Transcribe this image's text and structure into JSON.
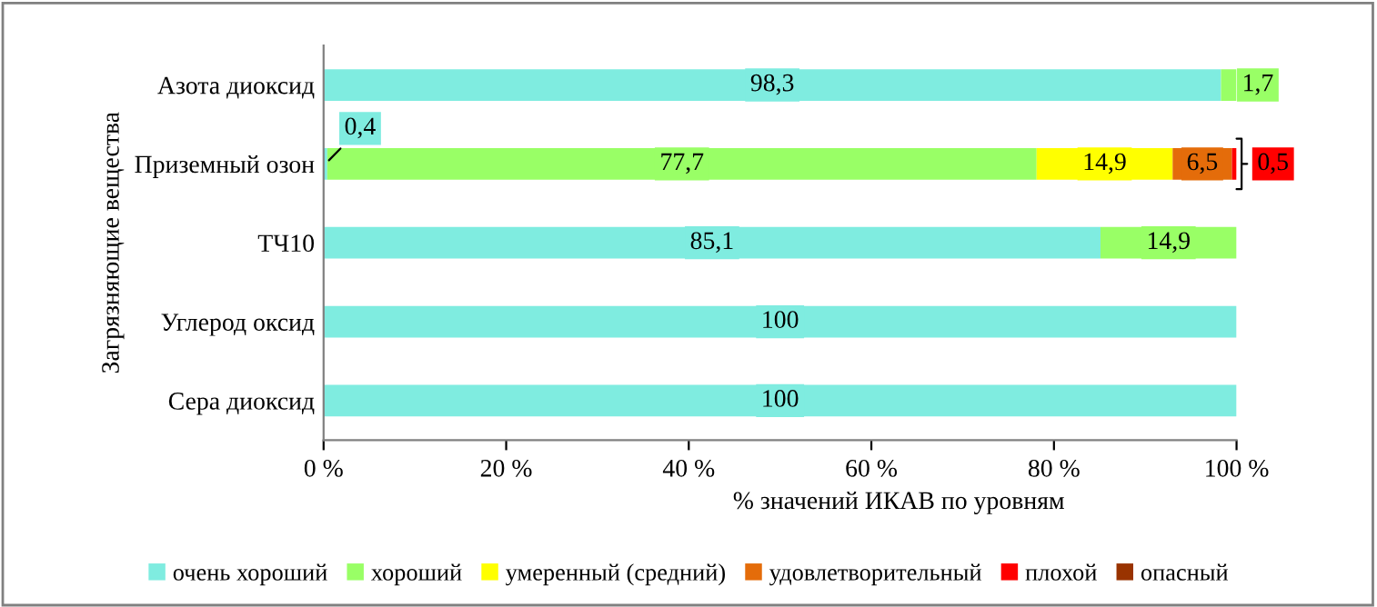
{
  "chart_data": {
    "type": "bar",
    "orientation": "horizontal",
    "stacked": true,
    "categories": [
      "Азота диоксид",
      "Приземный озон",
      "ТЧ10",
      "Углерод оксид",
      "Сера диоксид"
    ],
    "series": [
      {
        "name": "очень хороший",
        "color": "#7fece0",
        "values": [
          98.3,
          0.4,
          85.1,
          100,
          100
        ],
        "value_labels": [
          "98,3",
          "0,4",
          "85,1",
          "100",
          "100"
        ]
      },
      {
        "name": "хороший",
        "color": "#99ff66",
        "values": [
          1.7,
          77.7,
          14.9,
          null,
          null
        ],
        "value_labels": [
          "1,7",
          "77,7",
          "14,9",
          null,
          null
        ]
      },
      {
        "name": "умеренный (средний)",
        "color": "#ffff00",
        "values": [
          null,
          14.9,
          null,
          null,
          null
        ],
        "value_labels": [
          null,
          "14,9",
          null,
          null,
          null
        ]
      },
      {
        "name": "удовлетворительный",
        "color": "#e46c0a",
        "values": [
          null,
          6.5,
          null,
          null,
          null
        ],
        "value_labels": [
          null,
          "6,5",
          null,
          null,
          null
        ]
      },
      {
        "name": "плохой",
        "color": "#ff0000",
        "values": [
          null,
          0.5,
          null,
          null,
          null
        ],
        "value_labels": [
          null,
          "0,5",
          null,
          null,
          null
        ]
      },
      {
        "name": "опасный",
        "color": "#993300",
        "values": [
          null,
          null,
          null,
          null,
          null
        ]
      }
    ],
    "xlim": [
      0,
      100
    ],
    "xticks": [
      {
        "value": 0,
        "label": "0 %"
      },
      {
        "value": 20,
        "label": "20 %"
      },
      {
        "value": 40,
        "label": "40 %"
      },
      {
        "value": 60,
        "label": "60 %"
      },
      {
        "value": 80,
        "label": "80 %"
      },
      {
        "value": 100,
        "label": "100 %"
      }
    ],
    "xlabel": "% значений ИКАВ по уровням",
    "ylabel": "Загрязняющие вещества",
    "grid": false,
    "legend": "bottom"
  }
}
